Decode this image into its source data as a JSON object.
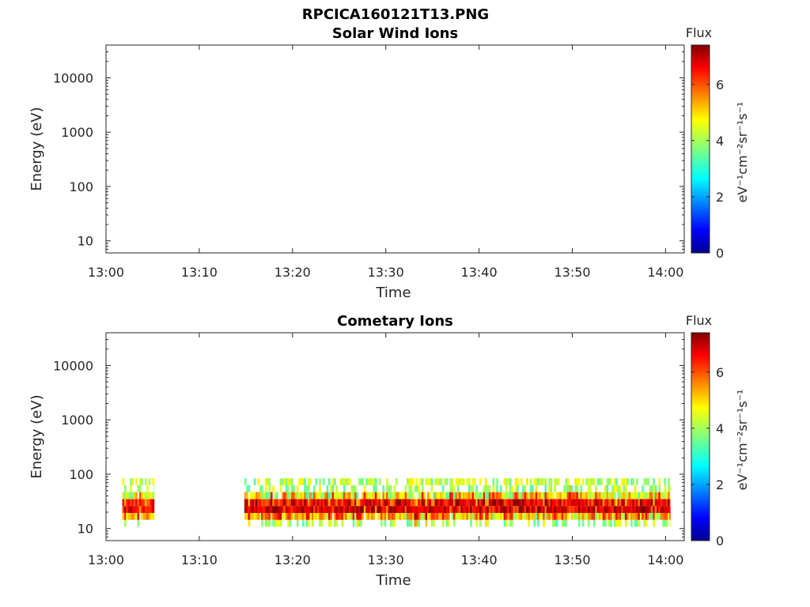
{
  "figure_title": "RPCICA160121T13.PNG",
  "chart_data": [
    {
      "type": "heatmap",
      "title": "Solar Wind Ions",
      "xlabel": "Time",
      "ylabel": "Energy (eV)",
      "x_range": [
        "13:00",
        "14:02"
      ],
      "xticks": [
        "13:00",
        "13:10",
        "13:20",
        "13:30",
        "13:40",
        "13:50",
        "14:00"
      ],
      "ylim": [
        6,
        40000
      ],
      "yscale": "log",
      "yticks": [
        {
          "value": 10,
          "label": "10"
        },
        {
          "value": 100,
          "label": "100"
        },
        {
          "value": 1000,
          "label": "1000"
        },
        {
          "value": 10000,
          "label": "10000"
        }
      ],
      "colorbar": {
        "title": "Flux",
        "label": "eV⁻¹cm⁻²sr⁻¹s⁻¹",
        "range": [
          0,
          7.4
        ],
        "ticks": [
          "0",
          "2",
          "4",
          "6"
        ],
        "colormap": "jet"
      },
      "segments": []
    },
    {
      "type": "heatmap",
      "title": "Cometary Ions",
      "xlabel": "Time",
      "ylabel": "Energy (eV)",
      "x_range": [
        "13:00",
        "14:02"
      ],
      "xticks": [
        "13:00",
        "13:10",
        "13:20",
        "13:30",
        "13:40",
        "13:50",
        "14:00"
      ],
      "ylim": [
        6,
        40000
      ],
      "yscale": "log",
      "yticks": [
        {
          "value": 10,
          "label": "10"
        },
        {
          "value": 100,
          "label": "100"
        },
        {
          "value": 1000,
          "label": "1000"
        },
        {
          "value": 10000,
          "label": "10000"
        }
      ],
      "colorbar": {
        "title": "Flux",
        "label": "eV⁻¹cm⁻²sr⁻¹s⁻¹",
        "range": [
          0,
          7.4
        ],
        "ticks": [
          "0",
          "2",
          "4",
          "6"
        ],
        "colormap": "jet"
      },
      "segments": [
        {
          "start": "13:01:45",
          "end": "13:05:10",
          "peak_energy_ev": 25,
          "min_energy_ev": 8,
          "max_energy_ev": 85,
          "peak_flux": 6.6
        },
        {
          "start": "13:14:50",
          "end": "14:00:30",
          "peak_energy_ev": 25,
          "min_energy_ev": 7,
          "max_energy_ev": 85,
          "peak_flux": 7.0
        }
      ]
    }
  ]
}
